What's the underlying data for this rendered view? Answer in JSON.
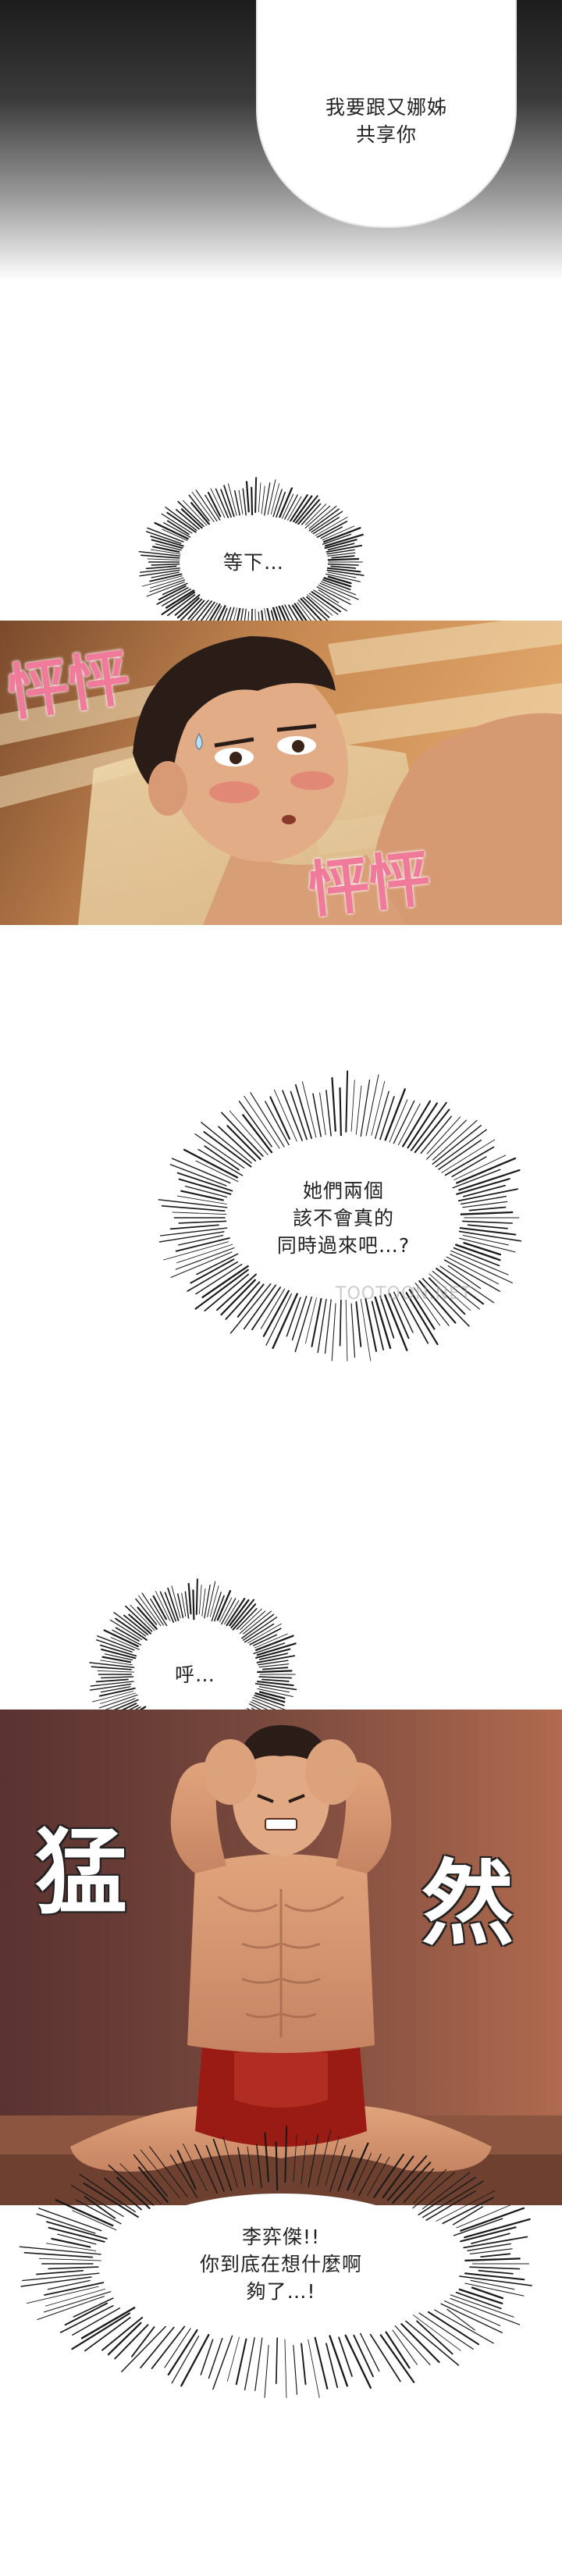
{
  "bubbles": {
    "b1": "我要跟又娜姊\n共享你",
    "b2": "等下…",
    "b3": "她們兩個\n該不會真的\n同時過來吧…?",
    "b4": "呼…",
    "b5": "李弈傑!!\n你到底在想什麼啊\n夠了…!"
  },
  "sfx": {
    "heartbeat_a": "怦怦",
    "heartbeat_b": "怦怦",
    "jolt_left": "猛",
    "jolt_right": "然"
  },
  "watermark": "TOOTOON.NET",
  "colors": {
    "heartbeat_pink": "#f07a9a",
    "panel1_warm": "#c07a44",
    "panel2_bg": "#7a4a3e",
    "skin": "#d8a07a",
    "shorts_red": "#9a1a14"
  }
}
